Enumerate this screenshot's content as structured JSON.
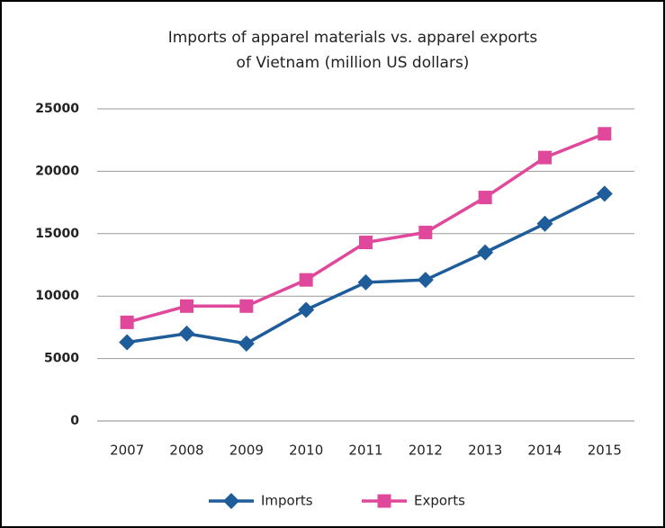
{
  "chart_data": {
    "type": "line",
    "title": [
      "Imports of apparel materials vs. apparel exports",
      "of Vietnam (million US dollars)"
    ],
    "categories": [
      "2007",
      "2008",
      "2009",
      "2010",
      "2011",
      "2012",
      "2013",
      "2014",
      "2015"
    ],
    "series": [
      {
        "name": "Imports",
        "color": "#1f5d9a",
        "marker": "diamond",
        "values": [
          6300,
          7000,
          6200,
          8900,
          11100,
          11300,
          13500,
          15800,
          18200
        ]
      },
      {
        "name": "Exports",
        "color": "#e0489c",
        "marker": "square",
        "values": [
          7900,
          9200,
          9200,
          11300,
          14300,
          15100,
          17900,
          21100,
          23000
        ]
      }
    ],
    "ylim": [
      0,
      25000
    ],
    "yticks": [
      0,
      5000,
      10000,
      15000,
      20000,
      25000
    ],
    "grid": true,
    "legend": "bottom"
  }
}
